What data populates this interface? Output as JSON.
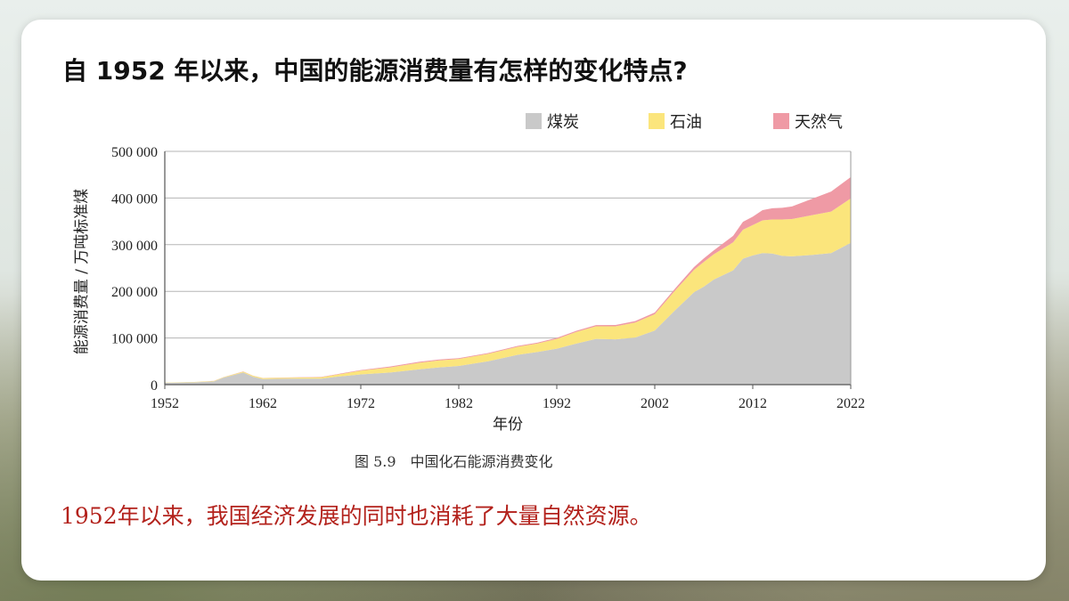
{
  "slide": {
    "title": "自 1952 年以来，中国的能源消费量有怎样的变化特点?",
    "caption": "图 5.9　中国化石能源消费变化",
    "conclusion": "1952年以来，我国经济发展的同时也消耗了大量自然资源。"
  },
  "chart_data": {
    "type": "area",
    "stacked": true,
    "xlabel": "年份",
    "ylabel": "能源消费量 / 万吨标准煤",
    "ylim": [
      0,
      500000
    ],
    "yticks": [
      0,
      100000,
      200000,
      300000,
      400000,
      500000
    ],
    "ytick_labels": [
      "0",
      "100 000",
      "200 000",
      "300 000",
      "400 000",
      "500 000"
    ],
    "xlim": [
      1952,
      2022
    ],
    "xticks": [
      1952,
      1962,
      1972,
      1982,
      1992,
      2002,
      2012,
      2022
    ],
    "xtick_labels": [
      "1952",
      "1962",
      "1972",
      "1982",
      "1992",
      "2002",
      "2012",
      "2022"
    ],
    "grid": "horizontal",
    "legend_position": "top-right",
    "x": [
      1952,
      1955,
      1957,
      1958,
      1960,
      1961,
      1962,
      1965,
      1968,
      1970,
      1972,
      1975,
      1978,
      1980,
      1982,
      1985,
      1988,
      1990,
      1992,
      1994,
      1996,
      1998,
      2000,
      2002,
      2004,
      2006,
      2007,
      2008,
      2010,
      2011,
      2012,
      2013,
      2014,
      2015,
      2016,
      2018,
      2020,
      2022
    ],
    "series": [
      {
        "name": "煤炭",
        "color": "#c9c9c9",
        "values": [
          4000,
          5000,
          7000,
          15000,
          26000,
          17000,
          12000,
          13000,
          13000,
          18000,
          22000,
          26000,
          33000,
          37000,
          40000,
          50000,
          64000,
          70000,
          77000,
          88000,
          98000,
          97000,
          101000,
          116000,
          158000,
          198000,
          210000,
          225000,
          245000,
          270000,
          277000,
          282000,
          281000,
          276000,
          275000,
          278000,
          282000,
          304000
        ]
      },
      {
        "name": "石油",
        "color": "#fbe57c",
        "values": [
          500,
          700,
          900,
          1000,
          2000,
          2000,
          2000,
          2000,
          3000,
          5000,
          8000,
          11000,
          14000,
          15000,
          15000,
          16000,
          17000,
          18000,
          21000,
          25000,
          27000,
          28000,
          32000,
          35000,
          42000,
          48000,
          53000,
          54000,
          60000,
          62000,
          65000,
          70000,
          73000,
          78000,
          80000,
          85000,
          89000,
          95000
        ]
      },
      {
        "name": "天然气",
        "color": "#ef9aa5",
        "values": [
          100,
          100,
          100,
          200,
          400,
          400,
          400,
          600,
          800,
          1000,
          1300,
          1800,
          2100,
          2000,
          1800,
          1800,
          2000,
          2000,
          2200,
          2400,
          2600,
          2900,
          3200,
          3600,
          4300,
          5800,
          7400,
          8400,
          14000,
          17000,
          18000,
          22000,
          24000,
          25000,
          27000,
          35000,
          43000,
          46000
        ]
      }
    ]
  }
}
